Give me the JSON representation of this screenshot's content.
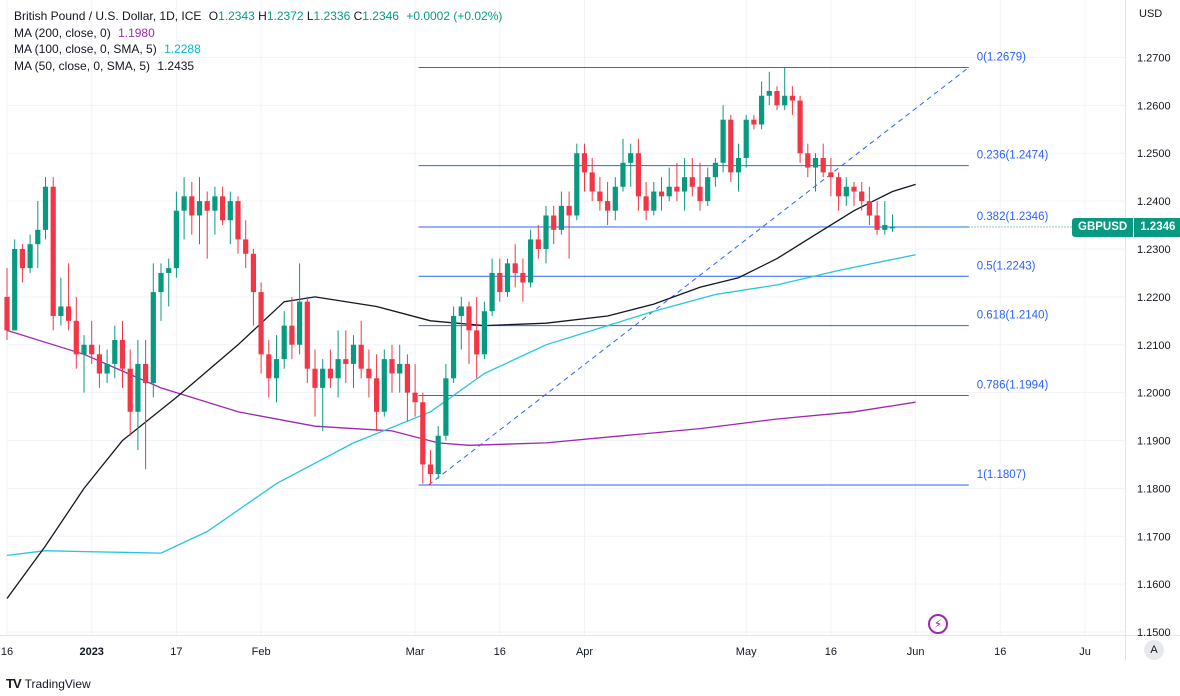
{
  "legend": {
    "title": "British Pound / U.S. Dollar, 1D, ICE",
    "ohlc": [
      {
        "key": "O",
        "value": "1.2343"
      },
      {
        "key": "H",
        "value": "1.2372"
      },
      {
        "key": "L",
        "value": "1.2336"
      },
      {
        "key": "C",
        "value": "1.2346"
      }
    ],
    "change": "+0.0002 (+0.02%)",
    "ma_rows": [
      {
        "label": "MA (200, close, 0)",
        "value": "1.1980",
        "color": "#9c27b0"
      },
      {
        "label": "MA (100, close, 0, SMA, 5)",
        "value": "1.2288",
        "color": "#00bcd4"
      },
      {
        "label": "MA (50, close, 0, SMA, 5)",
        "value": "1.2435",
        "color": "#131722"
      }
    ]
  },
  "currency": "USD",
  "price_tag": {
    "symbol": "GBPUSD",
    "value": "1.2346"
  },
  "footer": {
    "brand": "TradingView",
    "logo": "TV"
  },
  "auto_label": "A",
  "event_icon": "lightning-icon",
  "colors": {
    "up": "#089981",
    "down": "#f23645",
    "fib": "#2962ff",
    "ma200": "#9c27b0",
    "ma100": "#26c6da",
    "ma50": "#131722"
  },
  "chart_data": {
    "type": "candlestick",
    "title": "British Pound / U.S. Dollar, 1D, ICE",
    "y_axis": {
      "min": 1.145,
      "max": 1.282,
      "ticks": [
        "1.1500",
        "1.1600",
        "1.1700",
        "1.1800",
        "1.1900",
        "1.2000",
        "1.2100",
        "1.2200",
        "1.2300",
        "1.2400",
        "1.2500",
        "1.2600",
        "1.2700"
      ]
    },
    "x_ticks": [
      {
        "label": "16",
        "bar": 0
      },
      {
        "label": "2023",
        "bar": 11
      },
      {
        "label": "17",
        "bar": 22
      },
      {
        "label": "Feb",
        "bar": 33
      },
      {
        "label": "Mar",
        "bar": 53
      },
      {
        "label": "16",
        "bar": 64
      },
      {
        "label": "Apr",
        "bar": 75
      },
      {
        "label": "May",
        "bar": 96
      },
      {
        "label": "16",
        "bar": 107
      },
      {
        "label": "Jun",
        "bar": 118
      },
      {
        "label": "16",
        "bar": 129
      },
      {
        "label": "Ju",
        "bar": 140
      }
    ],
    "candles": [
      [
        1.22,
        1.226,
        1.211,
        1.213
      ],
      [
        1.213,
        1.232,
        1.213,
        1.23
      ],
      [
        1.23,
        1.231,
        1.223,
        1.226
      ],
      [
        1.226,
        1.233,
        1.225,
        1.231
      ],
      [
        1.231,
        1.24,
        1.226,
        1.234
      ],
      [
        1.234,
        1.245,
        1.232,
        1.243
      ],
      [
        1.243,
        1.245,
        1.213,
        1.216
      ],
      [
        1.216,
        1.224,
        1.214,
        1.218
      ],
      [
        1.218,
        1.227,
        1.213,
        1.215
      ],
      [
        1.215,
        1.22,
        1.205,
        1.208
      ],
      [
        1.208,
        1.212,
        1.2,
        1.21
      ],
      [
        1.21,
        1.215,
        1.206,
        1.208
      ],
      [
        1.208,
        1.21,
        1.201,
        1.204
      ],
      [
        1.204,
        1.209,
        1.202,
        1.206
      ],
      [
        1.206,
        1.214,
        1.203,
        1.211
      ],
      [
        1.211,
        1.215,
        1.201,
        1.205
      ],
      [
        1.205,
        1.209,
        1.191,
        1.196
      ],
      [
        1.196,
        1.211,
        1.188,
        1.206
      ],
      [
        1.206,
        1.211,
        1.184,
        1.202
      ],
      [
        1.202,
        1.227,
        1.199,
        1.221
      ],
      [
        1.221,
        1.227,
        1.215,
        1.225
      ],
      [
        1.225,
        1.228,
        1.218,
        1.226
      ],
      [
        1.226,
        1.242,
        1.224,
        1.238
      ],
      [
        1.238,
        1.245,
        1.232,
        1.241
      ],
      [
        1.241,
        1.244,
        1.233,
        1.237
      ],
      [
        1.237,
        1.245,
        1.231,
        1.24
      ],
      [
        1.24,
        1.242,
        1.228,
        1.238
      ],
      [
        1.238,
        1.243,
        1.233,
        1.241
      ],
      [
        1.241,
        1.243,
        1.235,
        1.236
      ],
      [
        1.236,
        1.242,
        1.231,
        1.24
      ],
      [
        1.24,
        1.241,
        1.229,
        1.232
      ],
      [
        1.232,
        1.236,
        1.226,
        1.229
      ],
      [
        1.229,
        1.23,
        1.214,
        1.221
      ],
      [
        1.221,
        1.223,
        1.204,
        1.208
      ],
      [
        1.208,
        1.211,
        1.199,
        1.203
      ],
      [
        1.203,
        1.212,
        1.198,
        1.207
      ],
      [
        1.207,
        1.217,
        1.205,
        1.214
      ],
      [
        1.214,
        1.22,
        1.207,
        1.21
      ],
      [
        1.21,
        1.227,
        1.208,
        1.219
      ],
      [
        1.219,
        1.22,
        1.202,
        1.205
      ],
      [
        1.205,
        1.209,
        1.195,
        1.201
      ],
      [
        1.201,
        1.207,
        1.192,
        1.205
      ],
      [
        1.205,
        1.209,
        1.201,
        1.203
      ],
      [
        1.203,
        1.213,
        1.199,
        1.207
      ],
      [
        1.207,
        1.213,
        1.202,
        1.206
      ],
      [
        1.206,
        1.212,
        1.201,
        1.21
      ],
      [
        1.21,
        1.215,
        1.203,
        1.205
      ],
      [
        1.205,
        1.209,
        1.199,
        1.203
      ],
      [
        1.203,
        1.208,
        1.192,
        1.196
      ],
      [
        1.196,
        1.209,
        1.195,
        1.207
      ],
      [
        1.207,
        1.21,
        1.2,
        1.204
      ],
      [
        1.204,
        1.21,
        1.2,
        1.206
      ],
      [
        1.206,
        1.208,
        1.194,
        1.2
      ],
      [
        1.2,
        1.206,
        1.195,
        1.198
      ],
      [
        1.198,
        1.2,
        1.181,
        1.185
      ],
      [
        1.185,
        1.188,
        1.1807,
        1.183
      ],
      [
        1.183,
        1.193,
        1.182,
        1.191
      ],
      [
        1.191,
        1.206,
        1.19,
        1.203
      ],
      [
        1.203,
        1.218,
        1.202,
        1.216
      ],
      [
        1.216,
        1.22,
        1.209,
        1.218
      ],
      [
        1.218,
        1.219,
        1.206,
        1.213
      ],
      [
        1.213,
        1.22,
        1.203,
        1.208
      ],
      [
        1.208,
        1.219,
        1.207,
        1.217
      ],
      [
        1.217,
        1.228,
        1.216,
        1.225
      ],
      [
        1.225,
        1.228,
        1.219,
        1.221
      ],
      [
        1.221,
        1.228,
        1.22,
        1.227
      ],
      [
        1.227,
        1.231,
        1.222,
        1.225
      ],
      [
        1.225,
        1.228,
        1.219,
        1.223
      ],
      [
        1.223,
        1.234,
        1.222,
        1.232
      ],
      [
        1.232,
        1.235,
        1.228,
        1.23
      ],
      [
        1.23,
        1.239,
        1.227,
        1.237
      ],
      [
        1.237,
        1.239,
        1.231,
        1.234
      ],
      [
        1.234,
        1.242,
        1.233,
        1.239
      ],
      [
        1.239,
        1.242,
        1.228,
        1.237
      ],
      [
        1.237,
        1.252,
        1.236,
        1.25
      ],
      [
        1.25,
        1.252,
        1.242,
        1.246
      ],
      [
        1.246,
        1.249,
        1.24,
        1.242
      ],
      [
        1.242,
        1.245,
        1.238,
        1.24
      ],
      [
        1.24,
        1.244,
        1.235,
        1.238
      ],
      [
        1.238,
        1.245,
        1.236,
        1.243
      ],
      [
        1.243,
        1.253,
        1.242,
        1.248
      ],
      [
        1.248,
        1.252,
        1.243,
        1.25
      ],
      [
        1.25,
        1.253,
        1.238,
        1.241
      ],
      [
        1.241,
        1.244,
        1.236,
        1.238
      ],
      [
        1.238,
        1.244,
        1.237,
        1.242
      ],
      [
        1.242,
        1.245,
        1.238,
        1.241
      ],
      [
        1.241,
        1.247,
        1.24,
        1.243
      ],
      [
        1.243,
        1.248,
        1.24,
        1.242
      ],
      [
        1.242,
        1.249,
        1.238,
        1.245
      ],
      [
        1.245,
        1.249,
        1.241,
        1.243
      ],
      [
        1.243,
        1.248,
        1.238,
        1.24
      ],
      [
        1.24,
        1.247,
        1.239,
        1.245
      ],
      [
        1.245,
        1.249,
        1.243,
        1.248
      ],
      [
        1.248,
        1.26,
        1.246,
        1.257
      ],
      [
        1.257,
        1.258,
        1.244,
        1.246
      ],
      [
        1.246,
        1.252,
        1.242,
        1.249
      ],
      [
        1.249,
        1.258,
        1.247,
        1.257
      ],
      [
        1.257,
        1.258,
        1.255,
        1.256
      ],
      [
        1.256,
        1.265,
        1.255,
        1.262
      ],
      [
        1.262,
        1.267,
        1.26,
        1.263
      ],
      [
        1.263,
        1.264,
        1.259,
        1.26
      ],
      [
        1.26,
        1.268,
        1.259,
        1.262
      ],
      [
        1.262,
        1.264,
        1.258,
        1.261
      ],
      [
        1.261,
        1.262,
        1.248,
        1.25
      ],
      [
        1.25,
        1.252,
        1.245,
        1.247
      ],
      [
        1.247,
        1.25,
        1.242,
        1.249
      ],
      [
        1.249,
        1.252,
        1.245,
        1.246
      ],
      [
        1.246,
        1.249,
        1.241,
        1.245
      ],
      [
        1.245,
        1.246,
        1.238,
        1.241
      ],
      [
        1.241,
        1.245,
        1.239,
        1.243
      ],
      [
        1.243,
        1.244,
        1.239,
        1.242
      ],
      [
        1.242,
        1.244,
        1.238,
        1.24
      ],
      [
        1.24,
        1.243,
        1.235,
        1.237
      ],
      [
        1.237,
        1.24,
        1.233,
        1.234
      ],
      [
        1.234,
        1.24,
        1.233,
        1.235
      ],
      [
        1.2343,
        1.2372,
        1.2336,
        1.2346
      ]
    ],
    "fib_levels": [
      {
        "label": "0(1.2679)",
        "price": 1.2679
      },
      {
        "label": "0.236(1.2474)",
        "price": 1.2474
      },
      {
        "label": "0.382(1.2346)",
        "price": 1.2346
      },
      {
        "label": "0.5(1.2243)",
        "price": 1.2243
      },
      {
        "label": "0.618(1.2140)",
        "price": 1.214
      },
      {
        "label": "0.786(1.1994)",
        "price": 1.1994
      },
      {
        "label": "1(1.1807)",
        "price": 1.1807
      }
    ],
    "fib_trend": {
      "start_bar": 55,
      "start_price": 1.1807,
      "end_bar": 121,
      "end_price": 1.2679
    },
    "ma_lines": [
      {
        "name": "MA 200",
        "points": [
          [
            0,
            1.213
          ],
          [
            10,
            1.208
          ],
          [
            20,
            1.201
          ],
          [
            30,
            1.196
          ],
          [
            40,
            1.193
          ],
          [
            50,
            1.192
          ],
          [
            56,
            1.1895
          ],
          [
            60,
            1.189
          ],
          [
            70,
            1.1895
          ],
          [
            80,
            1.191
          ],
          [
            90,
            1.1925
          ],
          [
            100,
            1.1945
          ],
          [
            110,
            1.196
          ],
          [
            118,
            1.198
          ]
        ]
      },
      {
        "name": "MA 100",
        "points": [
          [
            0,
            1.166
          ],
          [
            5,
            1.167
          ],
          [
            10,
            1.1668
          ],
          [
            20,
            1.1665
          ],
          [
            26,
            1.171
          ],
          [
            35,
            1.181
          ],
          [
            45,
            1.1895
          ],
          [
            55,
            1.196
          ],
          [
            62,
            1.204
          ],
          [
            70,
            1.21
          ],
          [
            78,
            1.214
          ],
          [
            84,
            1.217
          ],
          [
            92,
            1.2205
          ],
          [
            100,
            1.2225
          ],
          [
            108,
            1.2255
          ],
          [
            118,
            1.2288
          ]
        ]
      },
      {
        "name": "MA 50",
        "points": [
          [
            0,
            1.157
          ],
          [
            5,
            1.168
          ],
          [
            10,
            1.18
          ],
          [
            15,
            1.19
          ],
          [
            22,
            1.199
          ],
          [
            30,
            1.21
          ],
          [
            36,
            1.219
          ],
          [
            40,
            1.22
          ],
          [
            48,
            1.218
          ],
          [
            55,
            1.215
          ],
          [
            62,
            1.214
          ],
          [
            70,
            1.2145
          ],
          [
            78,
            1.216
          ],
          [
            84,
            1.2185
          ],
          [
            90,
            1.222
          ],
          [
            95,
            1.224
          ],
          [
            100,
            1.228
          ],
          [
            105,
            1.233
          ],
          [
            110,
            1.238
          ],
          [
            115,
            1.242
          ],
          [
            118,
            1.2435
          ]
        ]
      }
    ]
  }
}
